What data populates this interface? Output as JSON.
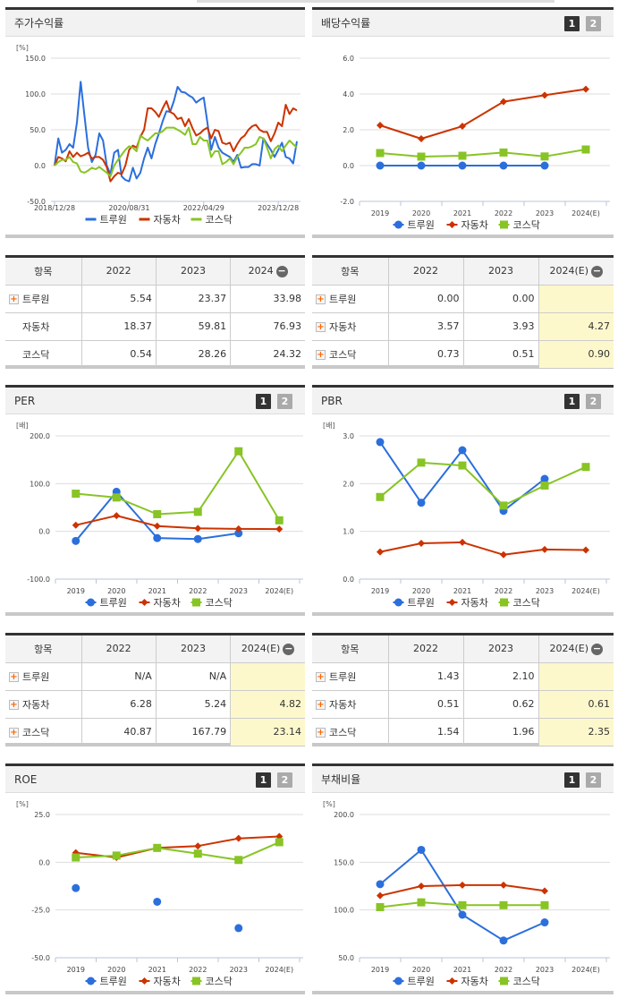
{
  "colors": {
    "series1": "#2b6fdc",
    "series2": "#cc3300",
    "series3": "#88c425"
  },
  "legend": [
    "트루원",
    "자동차",
    "코스닥"
  ],
  "pager": [
    "1",
    "2"
  ],
  "panels": {
    "price": {
      "title": "주가수익률"
    },
    "dividend": {
      "title": "배당수익률"
    },
    "per": {
      "title": "PER"
    },
    "pbr": {
      "title": "PBR"
    },
    "roe": {
      "title": "ROE"
    },
    "debt": {
      "title": "부채비율"
    }
  },
  "tables": {
    "price": {
      "headers": [
        "항목",
        "2022",
        "2023",
        "2024"
      ],
      "collapse_icon": "minus-circle-icon",
      "rows": [
        {
          "name": "트루원",
          "expand": true,
          "values": [
            "5.54",
            "23.37",
            "33.98"
          ]
        },
        {
          "name": "자동차",
          "expand": false,
          "values": [
            "18.37",
            "59.81",
            "76.93"
          ]
        },
        {
          "name": "코스닥",
          "expand": false,
          "values": [
            "0.54",
            "28.26",
            "24.32"
          ]
        }
      ]
    },
    "dividend": {
      "headers": [
        "항목",
        "2022",
        "2023",
        "2024(E)"
      ],
      "collapse_icon": "minus-circle-icon",
      "rows": [
        {
          "name": "트루원",
          "expand": true,
          "values": [
            "0.00",
            "0.00",
            ""
          ]
        },
        {
          "name": "자동차",
          "expand": true,
          "values": [
            "3.57",
            "3.93",
            "4.27"
          ]
        },
        {
          "name": "코스닥",
          "expand": true,
          "values": [
            "0.73",
            "0.51",
            "0.90"
          ]
        }
      ]
    },
    "per": {
      "headers": [
        "항목",
        "2022",
        "2023",
        "2024(E)"
      ],
      "collapse_icon": "minus-circle-icon",
      "rows": [
        {
          "name": "트루원",
          "expand": true,
          "values": [
            "N/A",
            "N/A",
            ""
          ]
        },
        {
          "name": "자동차",
          "expand": true,
          "values": [
            "6.28",
            "5.24",
            "4.82"
          ]
        },
        {
          "name": "코스닥",
          "expand": true,
          "values": [
            "40.87",
            "167.79",
            "23.14"
          ]
        }
      ]
    },
    "pbr": {
      "headers": [
        "항목",
        "2022",
        "2023",
        "2024(E)"
      ],
      "collapse_icon": "minus-circle-icon",
      "rows": [
        {
          "name": "트루원",
          "expand": true,
          "values": [
            "1.43",
            "2.10",
            ""
          ]
        },
        {
          "name": "자동차",
          "expand": true,
          "values": [
            "0.51",
            "0.62",
            "0.61"
          ]
        },
        {
          "name": "코스닥",
          "expand": true,
          "values": [
            "1.54",
            "1.96",
            "2.35"
          ]
        }
      ]
    }
  },
  "chart_data": [
    {
      "id": "price",
      "type": "line",
      "unit": "[%]",
      "ylim": [
        -50,
        150
      ],
      "yticks": [
        "150.0",
        "100.0",
        "50.0",
        "0.0",
        "-50.0"
      ],
      "grid": true,
      "legend_placement": "bottom",
      "x": [
        "2018/12",
        "2019/01",
        "2019/02",
        "2019/03",
        "2019/04",
        "2019/05",
        "2019/06",
        "2019/07",
        "2019/08",
        "2019/09",
        "2019/10",
        "2019/11",
        "2019/12",
        "2020/01",
        "2020/02",
        "2020/03",
        "2020/04",
        "2020/05",
        "2020/06",
        "2020/07",
        "2020/08",
        "2020/09",
        "2020/10",
        "2020/11",
        "2020/12",
        "2021/01",
        "2021/02",
        "2021/03",
        "2021/04",
        "2021/05",
        "2021/06",
        "2021/07",
        "2021/08",
        "2021/09",
        "2021/10",
        "2021/11",
        "2021/12",
        "2022/01",
        "2022/02",
        "2022/03",
        "2022/04",
        "2022/05",
        "2022/06",
        "2022/07",
        "2022/08",
        "2022/09",
        "2022/10",
        "2022/11",
        "2022/12",
        "2023/01",
        "2023/02",
        "2023/03",
        "2023/04",
        "2023/05",
        "2023/06",
        "2023/07",
        "2023/08",
        "2023/09",
        "2023/10",
        "2023/11",
        "2023/12",
        "2024/01",
        "2024/02",
        "2024/03",
        "2024/04",
        "2024/05"
      ],
      "xticks": [
        "2018/12/28",
        "2020/08/31",
        "2022/04/29",
        "2023/12/28"
      ],
      "series": [
        {
          "name": "트루원",
          "values": [
            0,
            38,
            18,
            22,
            30,
            25,
            60,
            117,
            70,
            25,
            5,
            15,
            45,
            35,
            0,
            -12,
            18,
            22,
            -15,
            -20,
            -22,
            -3,
            -18,
            -10,
            10,
            25,
            10,
            30,
            45,
            62,
            76,
            75,
            90,
            110,
            103,
            102,
            98,
            95,
            88,
            92,
            95,
            60,
            22,
            40,
            25,
            18,
            15,
            12,
            5,
            15,
            -3,
            -2,
            -2,
            2,
            2,
            0,
            38,
            30,
            22,
            12,
            22,
            32,
            12,
            10,
            3,
            34
          ]
        },
        {
          "name": "자동차",
          "values": [
            0,
            12,
            10,
            6,
            20,
            12,
            18,
            13,
            15,
            18,
            10,
            12,
            12,
            8,
            -2,
            -22,
            -15,
            -10,
            -12,
            0,
            22,
            28,
            25,
            40,
            50,
            80,
            80,
            75,
            68,
            80,
            90,
            75,
            72,
            65,
            67,
            55,
            65,
            52,
            42,
            45,
            50,
            53,
            38,
            50,
            48,
            32,
            30,
            32,
            20,
            30,
            38,
            42,
            50,
            55,
            57,
            50,
            47,
            47,
            34,
            45,
            60,
            55,
            85,
            72,
            80,
            77
          ]
        },
        {
          "name": "코스닥",
          "values": [
            0,
            5,
            8,
            8,
            12,
            5,
            3,
            -8,
            -10,
            -7,
            -3,
            -5,
            -2,
            -6,
            -10,
            -15,
            0,
            8,
            15,
            22,
            27,
            25,
            20,
            42,
            38,
            35,
            40,
            45,
            45,
            48,
            53,
            53,
            53,
            50,
            47,
            43,
            53,
            30,
            30,
            40,
            35,
            35,
            12,
            20,
            20,
            2,
            5,
            10,
            2,
            12,
            18,
            25,
            25,
            27,
            30,
            40,
            38,
            25,
            10,
            23,
            28,
            20,
            28,
            35,
            30,
            25
          ]
        }
      ]
    },
    {
      "id": "dividend",
      "type": "line",
      "unit": "",
      "ylim": [
        -2,
        6
      ],
      "yticks": [
        "6.0",
        "4.0",
        "2.0",
        "0.0",
        "-2.0"
      ],
      "grid": true,
      "legend_placement": "bottom",
      "categories": [
        "2019",
        "2020",
        "2021",
        "2022",
        "2023",
        "2024(E)"
      ],
      "series": [
        {
          "name": "트루원",
          "values": [
            0,
            0,
            0,
            0,
            0,
            null
          ]
        },
        {
          "name": "자동차",
          "values": [
            2.25,
            1.5,
            2.2,
            3.57,
            3.93,
            4.27
          ]
        },
        {
          "name": "코스닥",
          "values": [
            0.7,
            0.5,
            0.55,
            0.73,
            0.51,
            0.9
          ]
        }
      ]
    },
    {
      "id": "per",
      "type": "line",
      "unit": "[배]",
      "ylim": [
        -100,
        200
      ],
      "yticks": [
        "200.0",
        "100.0",
        "0.0",
        "-100.0"
      ],
      "grid": true,
      "legend_placement": "bottom",
      "categories": [
        "2019",
        "2020",
        "2021",
        "2022",
        "2023",
        "2024(E)"
      ],
      "series": [
        {
          "name": "트루원",
          "values": [
            -20,
            83,
            -14,
            -16,
            -4,
            null
          ]
        },
        {
          "name": "자동차",
          "values": [
            13,
            33,
            11,
            6.28,
            5.24,
            4.82
          ]
        },
        {
          "name": "코스닥",
          "values": [
            79,
            71,
            36,
            40.87,
            167.79,
            23.14
          ]
        }
      ]
    },
    {
      "id": "pbr",
      "type": "line",
      "unit": "[배]",
      "ylim": [
        0,
        3
      ],
      "yticks": [
        "3.0",
        "2.0",
        "1.0",
        "0.0"
      ],
      "grid": true,
      "legend_placement": "bottom",
      "categories": [
        "2019",
        "2020",
        "2021",
        "2022",
        "2023",
        "2024(E)"
      ],
      "series": [
        {
          "name": "트루원",
          "values": [
            2.87,
            1.6,
            2.7,
            1.43,
            2.1,
            null
          ]
        },
        {
          "name": "자동차",
          "values": [
            0.57,
            0.75,
            0.77,
            0.51,
            0.62,
            0.61
          ]
        },
        {
          "name": "코스닥",
          "values": [
            1.72,
            2.44,
            2.38,
            1.54,
            1.96,
            2.35
          ]
        }
      ]
    },
    {
      "id": "roe",
      "type": "line",
      "unit": "[%]",
      "ylim": [
        -50,
        25
      ],
      "yticks": [
        "25.0",
        "0.0",
        "-25.0",
        "-50.0"
      ],
      "grid": true,
      "legend_placement": "bottom",
      "categories": [
        "2019",
        "2020",
        "2021",
        "2022",
        "2023",
        "2024(E)"
      ],
      "series": [
        {
          "name": "트루원",
          "values": [
            -13.5,
            null,
            -20.7,
            null,
            -34.5,
            null
          ]
        },
        {
          "name": "자동차",
          "values": [
            5,
            2.5,
            7.5,
            8.5,
            12.5,
            13.5
          ]
        },
        {
          "name": "코스닥",
          "values": [
            2.5,
            3.5,
            7.5,
            4.5,
            1.2,
            10.5
          ]
        }
      ]
    },
    {
      "id": "debt",
      "type": "line",
      "unit": "[%]",
      "ylim": [
        50,
        200
      ],
      "yticks": [
        "200.0",
        "150.0",
        "100.0",
        "50.0"
      ],
      "grid": true,
      "legend_placement": "bottom",
      "categories": [
        "2019",
        "2020",
        "2021",
        "2022",
        "2023",
        "2024(E)"
      ],
      "series": [
        {
          "name": "트루원",
          "values": [
            127,
            163,
            95,
            68,
            87,
            null
          ]
        },
        {
          "name": "자동차",
          "values": [
            115,
            125,
            126,
            126,
            120,
            null
          ]
        },
        {
          "name": "코스닥",
          "values": [
            103,
            108,
            105,
            105,
            105,
            null
          ]
        }
      ]
    }
  ]
}
